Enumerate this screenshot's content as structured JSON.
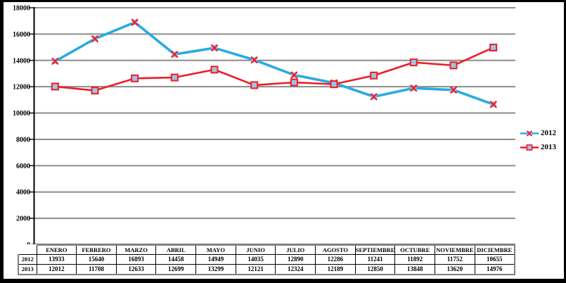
{
  "window": {
    "background": "#FFFFFF",
    "frame_border_color": "#000000"
  },
  "chart_data": {
    "type": "line",
    "title": "",
    "xlabel": "",
    "ylabel": "",
    "categories": [
      "ENERO",
      "FEBRERO",
      "MARZO",
      "ABRIL",
      "MAYO",
      "JUNIO",
      "JULIO",
      "AGOSTO",
      "SEPTIEMBRE",
      "OCTUBRE",
      "NOVIEMBRE",
      "DICIEMBRE"
    ],
    "series": [
      {
        "name": "2012",
        "values": [
          13933,
          15640,
          16893,
          14458,
          14949,
          14035,
          12890,
          12286,
          11241,
          11892,
          11752,
          10655
        ],
        "color": "#29ABE2",
        "line_width": 3.6,
        "marker": "x-square",
        "marker_fill": "#9DC3E6",
        "marker_stroke": "#EE1C25"
      },
      {
        "name": "2013",
        "values": [
          12012,
          11708,
          12633,
          12699,
          13299,
          12121,
          12324,
          12189,
          12850,
          13848,
          13620,
          14976
        ],
        "color": "#EE1C25",
        "line_width": 2.6,
        "marker": "square",
        "marker_fill": "#9DC3E6",
        "marker_stroke": "#EE1C25"
      }
    ],
    "ylim": [
      0,
      18000
    ],
    "yticks": [
      0,
      2000,
      4000,
      6000,
      8000,
      10000,
      12000,
      14000,
      16000,
      18000
    ],
    "grid": "horizontal",
    "gridline_color": "#8C8C8C",
    "axis_color": "#000000",
    "tick_label_color": "#000000",
    "legend_position": "right",
    "data_table_shown": true,
    "table_outer_border_color": "#7F7F7F",
    "table_inner_border_color": "#000000"
  }
}
